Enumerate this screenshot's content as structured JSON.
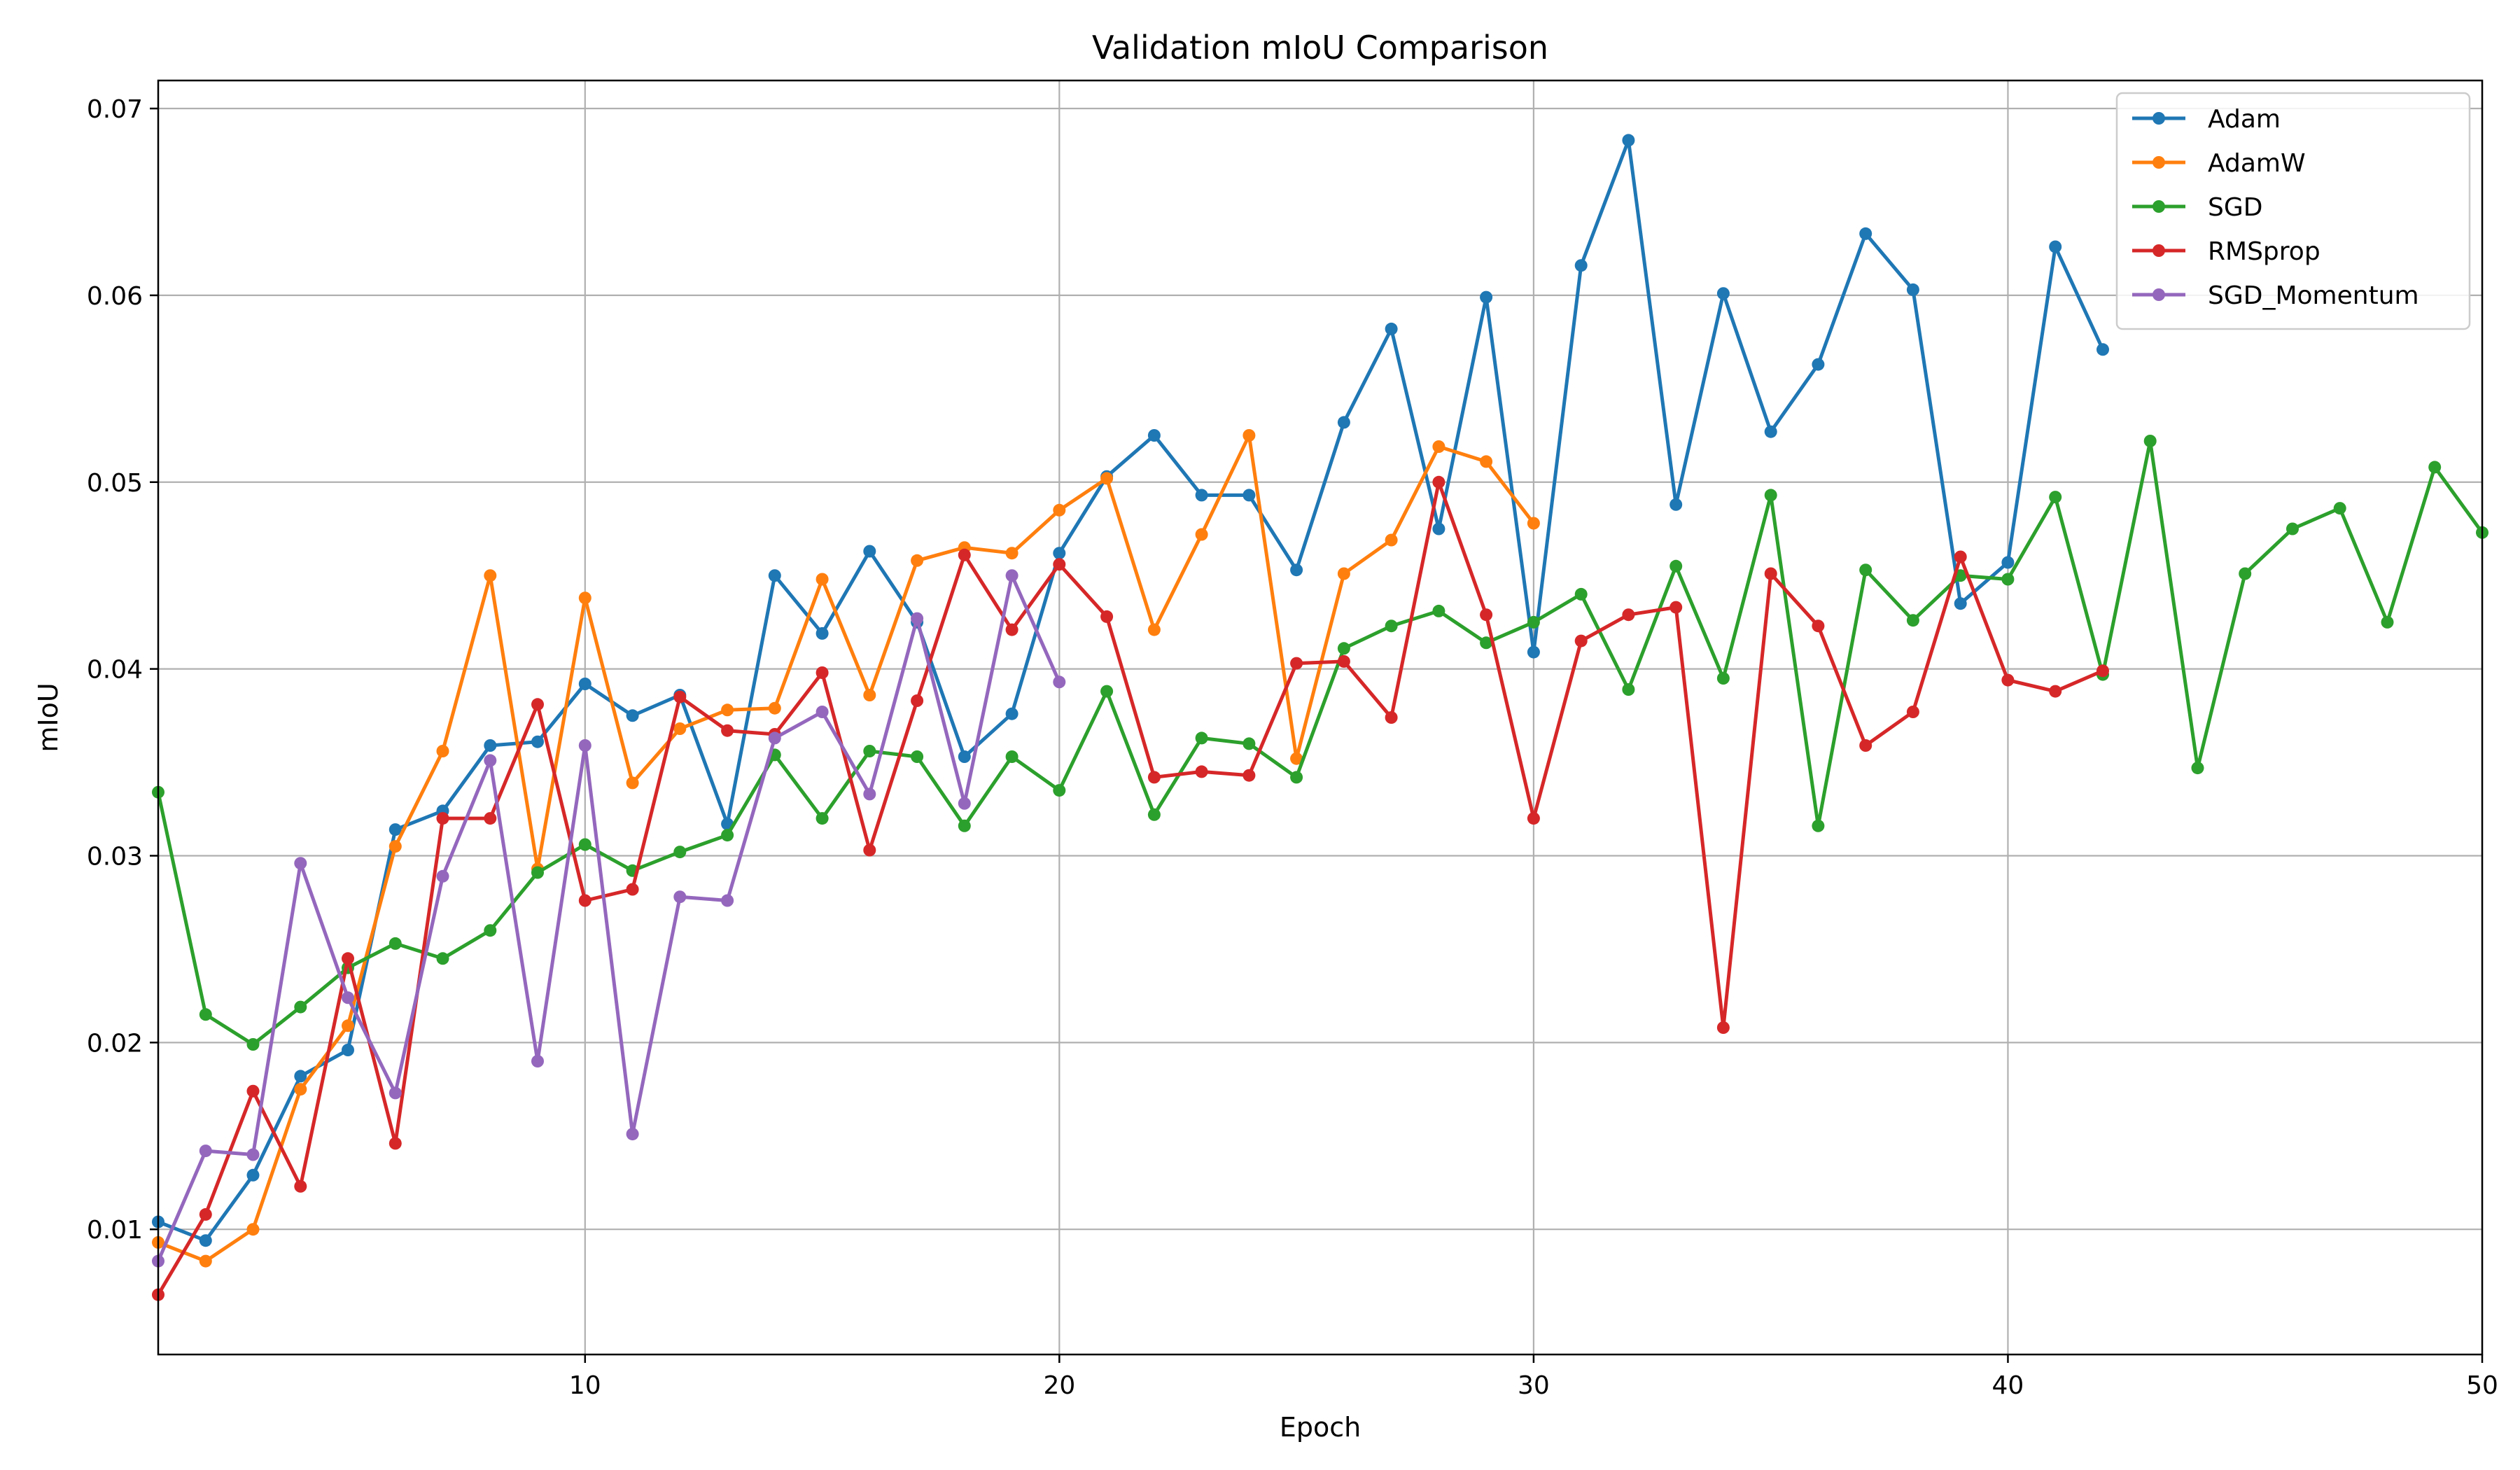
{
  "chart_data": {
    "type": "line",
    "title": "Validation mIoU Comparison",
    "xlabel": "Epoch",
    "ylabel": "mIoU",
    "xlim": [
      1,
      50
    ],
    "ylim": [
      0.0033,
      0.0715
    ],
    "xticks": [
      10,
      20,
      30,
      40,
      50
    ],
    "yticks": [
      0.01,
      0.02,
      0.03,
      0.04,
      0.05,
      0.06,
      0.07
    ],
    "xtick_labels": [
      "10",
      "20",
      "30",
      "40",
      "50"
    ],
    "ytick_labels": [
      "0.01",
      "0.02",
      "0.03",
      "0.04",
      "0.05",
      "0.06",
      "0.07"
    ],
    "grid": true,
    "legend_position": "top-right",
    "series": [
      {
        "name": "Adam",
        "color": "#1f77b4",
        "x": [
          1,
          2,
          3,
          4,
          5,
          6,
          7,
          8,
          9,
          10,
          11,
          12,
          13,
          14,
          15,
          16,
          17,
          18,
          19,
          20,
          21,
          22,
          23,
          24,
          25,
          26,
          27,
          28,
          29,
          30,
          31,
          32,
          33,
          34,
          35,
          36,
          37,
          38,
          39,
          40,
          41,
          42
        ],
        "values": [
          0.0104,
          0.0094,
          0.0129,
          0.0182,
          0.0196,
          0.0314,
          0.0324,
          0.0359,
          0.0361,
          0.0392,
          0.0375,
          0.0386,
          0.0317,
          0.045,
          0.0419,
          0.0463,
          0.0425,
          0.0353,
          0.0376,
          0.0462,
          0.0503,
          0.0525,
          0.0493,
          0.0493,
          0.0453,
          0.0532,
          0.0582,
          0.0475,
          0.0599,
          0.0409,
          0.0616,
          0.0683,
          0.0488,
          0.0601,
          0.0527,
          0.0563,
          0.0633,
          0.0603,
          0.0435,
          0.0457,
          0.0626,
          0.0571
        ]
      },
      {
        "name": "AdamW",
        "color": "#ff7f0e",
        "x": [
          1,
          2,
          3,
          4,
          5,
          6,
          7,
          8,
          9,
          10,
          11,
          12,
          13,
          14,
          15,
          16,
          17,
          18,
          19,
          20,
          21,
          22,
          23,
          24,
          25,
          26,
          27,
          28,
          29,
          30
        ],
        "values": [
          0.0093,
          0.0083,
          0.01,
          0.0175,
          0.0209,
          0.0305,
          0.0356,
          0.045,
          0.0293,
          0.0438,
          0.0339,
          0.0368,
          0.0378,
          0.0379,
          0.0448,
          0.0386,
          0.0458,
          0.0465,
          0.0462,
          0.0485,
          0.0502,
          0.0421,
          0.0472,
          0.0525,
          0.0352,
          0.0451,
          0.0469,
          0.0519,
          0.0511,
          0.0478
        ]
      },
      {
        "name": "SGD",
        "color": "#2ca02c",
        "x": [
          1,
          2,
          3,
          4,
          5,
          6,
          7,
          8,
          9,
          10,
          11,
          12,
          13,
          14,
          15,
          16,
          17,
          18,
          19,
          20,
          21,
          22,
          23,
          24,
          25,
          26,
          27,
          28,
          29,
          30,
          31,
          32,
          33,
          34,
          35,
          36,
          37,
          38,
          39,
          40,
          41,
          42,
          43,
          44,
          45,
          46,
          47,
          48,
          49,
          50
        ],
        "values": [
          0.0334,
          0.0215,
          0.0199,
          0.0219,
          0.024,
          0.0253,
          0.0245,
          0.026,
          0.0291,
          0.0306,
          0.0292,
          0.0302,
          0.0311,
          0.0354,
          0.032,
          0.0356,
          0.0353,
          0.0316,
          0.0353,
          0.0335,
          0.0388,
          0.0322,
          0.0363,
          0.036,
          0.0342,
          0.0411,
          0.0423,
          0.0431,
          0.0414,
          0.0425,
          0.044,
          0.0389,
          0.0455,
          0.0395,
          0.0493,
          0.0316,
          0.0453,
          0.0426,
          0.045,
          0.0448,
          0.0492,
          0.0397,
          0.0522,
          0.0347,
          0.0451,
          0.0475,
          0.0486,
          0.0425,
          0.0508,
          0.0473
        ]
      },
      {
        "name": "RMSprop",
        "color": "#d62728",
        "x": [
          1,
          2,
          3,
          4,
          5,
          6,
          7,
          8,
          9,
          10,
          11,
          12,
          13,
          14,
          15,
          16,
          17,
          18,
          19,
          20,
          21,
          22,
          23,
          24,
          25,
          26,
          27,
          28,
          29,
          30,
          31,
          32,
          33,
          34,
          35,
          36,
          37,
          38,
          39,
          40,
          41,
          42
        ],
        "values": [
          0.0065,
          0.0108,
          0.0174,
          0.0123,
          0.0245,
          0.0146,
          0.032,
          0.032,
          0.0381,
          0.0276,
          0.0282,
          0.0385,
          0.0367,
          0.0365,
          0.0398,
          0.0303,
          0.0383,
          0.0461,
          0.0421,
          0.0456,
          0.0428,
          0.0342,
          0.0345,
          0.0343,
          0.0403,
          0.0404,
          0.0374,
          0.05,
          0.0429,
          0.032,
          0.0415,
          0.0429,
          0.0433,
          0.0208,
          0.0451,
          0.0423,
          0.0359,
          0.0377,
          0.046,
          0.0394,
          0.0388,
          0.0399
        ]
      },
      {
        "name": "SGD_Momentum",
        "color": "#9467bd",
        "x": [
          1,
          2,
          3,
          4,
          5,
          6,
          7,
          8,
          9,
          10,
          11,
          12,
          13,
          14,
          15,
          16,
          17,
          18,
          19,
          20
        ],
        "values": [
          0.0083,
          0.0142,
          0.014,
          0.0296,
          0.0224,
          0.0173,
          0.0289,
          0.0351,
          0.019,
          0.0359,
          0.0151,
          0.0278,
          0.0276,
          0.0363,
          0.0377,
          0.0333,
          0.0427,
          0.0328,
          0.045,
          0.0393
        ]
      }
    ]
  }
}
